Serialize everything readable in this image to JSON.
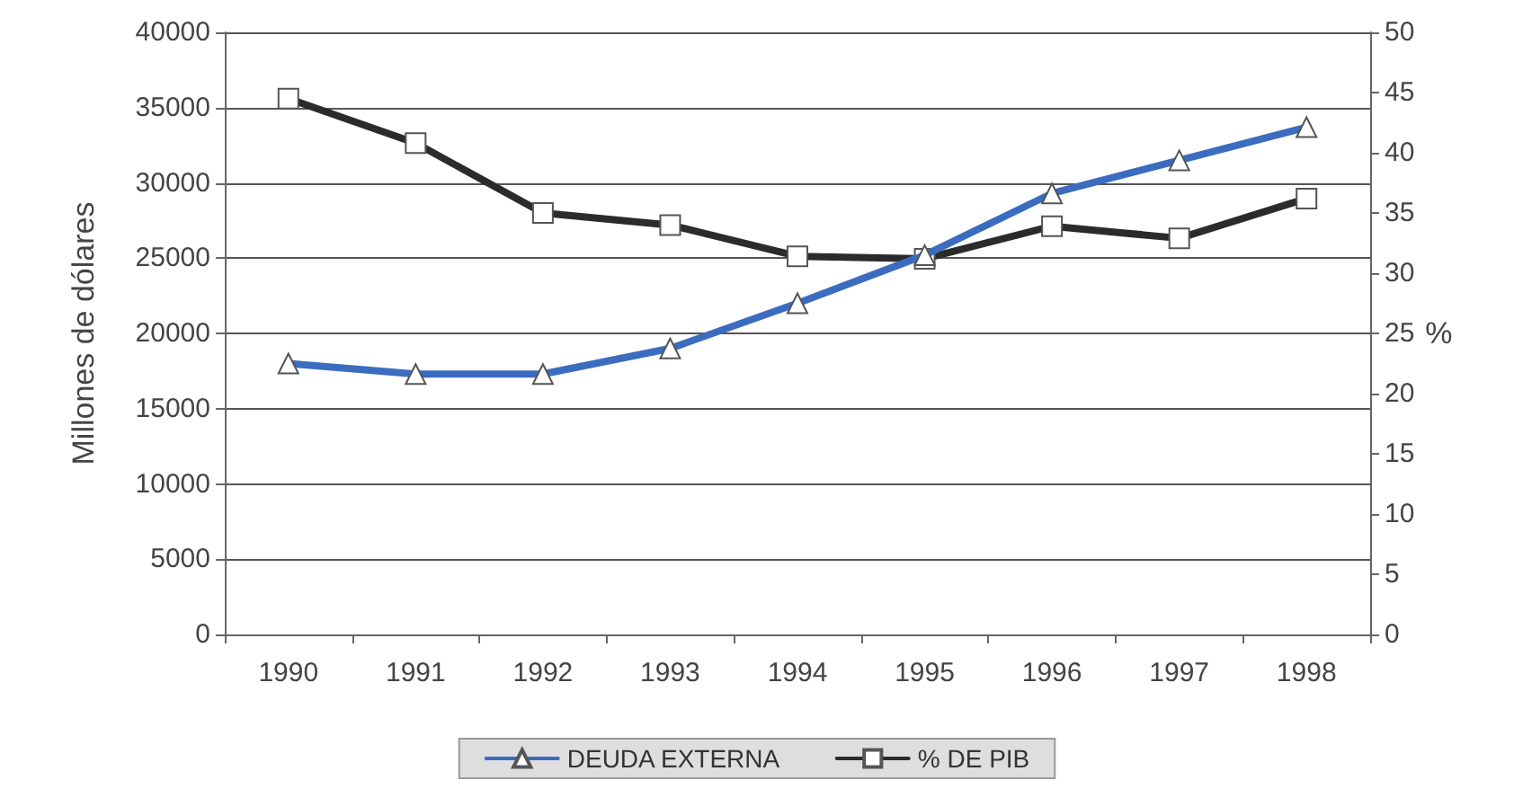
{
  "chart_data": {
    "type": "line",
    "ylabel": "Millones de dólares",
    "y2label": "%",
    "categories": [
      "1990",
      "1991",
      "1992",
      "1993",
      "1994",
      "1995",
      "1996",
      "1997",
      "1998"
    ],
    "series": [
      {
        "name": "DEUDA EXTERNA",
        "color": "#3b6cc0",
        "marker": "triangle",
        "values": [
          18000,
          17300,
          17300,
          19000,
          22000,
          25200,
          29300,
          31500,
          33700
        ]
      },
      {
        "name": "% DE PIB",
        "color": "#2b2b2b",
        "marker": "square",
        "axis": "y2",
        "values": [
          44.5,
          40.8,
          35,
          34,
          31.4,
          31.2,
          33.9,
          32.9,
          36.2
        ]
      }
    ],
    "ylim": [
      0,
      40000
    ],
    "yticks": [
      0,
      5000,
      10000,
      15000,
      20000,
      25000,
      30000,
      35000,
      40000
    ],
    "y2lim": [
      0,
      50
    ],
    "y2ticks": [
      0,
      5,
      10,
      15,
      20,
      25,
      30,
      35,
      40,
      45,
      50
    ],
    "grid": "y",
    "legend": "bottom"
  }
}
